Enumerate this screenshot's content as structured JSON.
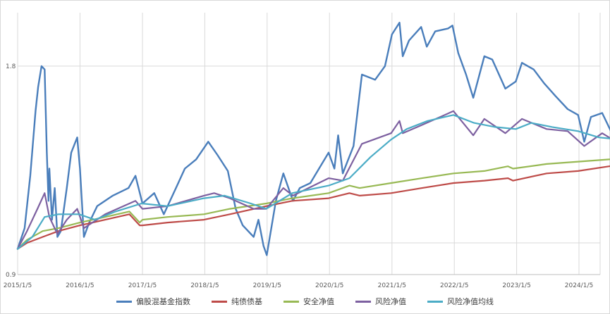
{
  "chart_data": {
    "type": "line",
    "title": "",
    "xlabel": "",
    "ylabel": "",
    "x_ticks": [
      "2015/1/5",
      "2016/1/5",
      "2017/1/5",
      "2018/1/5",
      "2019/1/5",
      "2020/1/5",
      "2021/1/5",
      "2022/1/5",
      "2023/1/5",
      "2024/1/5"
    ],
    "y_scale": "log",
    "y_ticks": [
      "0.9",
      "1.8"
    ],
    "ylim": [
      0.9,
      2.15
    ],
    "xlim": [
      "2015-01-05",
      "2024-11-30"
    ],
    "grid": {
      "vertical": true,
      "horizontal": true
    },
    "legend_position": "bottom",
    "series": [
      {
        "name": "偏股混基金指数",
        "color": "#4a7ebb",
        "points": [
          [
            "2015-01-05",
            0.98
          ],
          [
            "2015-02-15",
            1.05
          ],
          [
            "2015-03-20",
            1.25
          ],
          [
            "2015-04-20",
            1.55
          ],
          [
            "2015-05-05",
            1.68
          ],
          [
            "2015-05-25",
            1.8
          ],
          [
            "2015-06-12",
            1.78
          ],
          [
            "2015-06-25",
            1.35
          ],
          [
            "2015-07-05",
            1.15
          ],
          [
            "2015-07-10",
            1.28
          ],
          [
            "2015-07-25",
            1.08
          ],
          [
            "2015-08-10",
            1.2
          ],
          [
            "2015-08-26",
            1.02
          ],
          [
            "2015-09-15",
            1.04
          ],
          [
            "2015-10-20",
            1.2
          ],
          [
            "2015-11-15",
            1.35
          ],
          [
            "2015-12-20",
            1.42
          ],
          [
            "2016-01-05",
            1.28
          ],
          [
            "2016-01-28",
            1.02
          ],
          [
            "2016-02-28",
            1.07
          ],
          [
            "2016-04-15",
            1.13
          ],
          [
            "2016-07-15",
            1.17
          ],
          [
            "2016-10-15",
            1.2
          ],
          [
            "2016-11-25",
            1.25
          ],
          [
            "2017-01-05",
            1.14
          ],
          [
            "2017-03-15",
            1.18
          ],
          [
            "2017-05-10",
            1.1
          ],
          [
            "2017-07-20",
            1.2
          ],
          [
            "2017-09-10",
            1.28
          ],
          [
            "2017-11-15",
            1.32
          ],
          [
            "2018-01-25",
            1.4
          ],
          [
            "2018-03-20",
            1.34
          ],
          [
            "2018-05-20",
            1.27
          ],
          [
            "2018-07-05",
            1.12
          ],
          [
            "2018-08-15",
            1.06
          ],
          [
            "2018-10-18",
            1.02
          ],
          [
            "2018-11-15",
            1.08
          ],
          [
            "2018-12-15",
            0.99
          ],
          [
            "2019-01-03",
            0.96
          ],
          [
            "2019-02-25",
            1.15
          ],
          [
            "2019-04-10",
            1.26
          ],
          [
            "2019-06-05",
            1.15
          ],
          [
            "2019-07-15",
            1.2
          ],
          [
            "2019-09-15",
            1.22
          ],
          [
            "2019-12-31",
            1.35
          ],
          [
            "2020-02-03",
            1.28
          ],
          [
            "2020-02-25",
            1.43
          ],
          [
            "2020-03-23",
            1.26
          ],
          [
            "2020-05-25",
            1.38
          ],
          [
            "2020-07-13",
            1.75
          ],
          [
            "2020-09-28",
            1.72
          ],
          [
            "2020-11-25",
            1.8
          ],
          [
            "2021-01-05",
            2.0
          ],
          [
            "2021-02-18",
            2.08
          ],
          [
            "2021-03-09",
            1.86
          ],
          [
            "2021-04-15",
            1.96
          ],
          [
            "2021-06-25",
            2.05
          ],
          [
            "2021-07-28",
            1.92
          ],
          [
            "2021-09-15",
            2.02
          ],
          [
            "2021-11-30",
            2.04
          ],
          [
            "2021-12-25",
            2.06
          ],
          [
            "2022-01-28",
            1.88
          ],
          [
            "2022-03-15",
            1.75
          ],
          [
            "2022-04-26",
            1.62
          ],
          [
            "2022-06-30",
            1.86
          ],
          [
            "2022-08-15",
            1.84
          ],
          [
            "2022-10-31",
            1.67
          ],
          [
            "2022-12-31",
            1.71
          ],
          [
            "2023-02-05",
            1.82
          ],
          [
            "2023-04-15",
            1.78
          ],
          [
            "2023-06-15",
            1.7
          ],
          [
            "2023-08-20",
            1.63
          ],
          [
            "2023-10-31",
            1.56
          ],
          [
            "2023-12-31",
            1.53
          ],
          [
            "2024-02-05",
            1.4
          ],
          [
            "2024-03-15",
            1.52
          ],
          [
            "2024-05-20",
            1.54
          ],
          [
            "2024-07-10",
            1.45
          ],
          [
            "2024-08-31",
            1.4
          ],
          [
            "2024-09-20",
            1.36
          ],
          [
            "2024-10-08",
            1.6
          ],
          [
            "2024-11-30",
            1.53
          ]
        ]
      },
      {
        "name": "纯债债基",
        "color": "#be4b48",
        "points": [
          [
            "2015-01-05",
            0.98
          ],
          [
            "2015-03-01",
            1.0
          ],
          [
            "2015-06-01",
            1.02
          ],
          [
            "2015-09-01",
            1.04
          ],
          [
            "2016-01-05",
            1.06
          ],
          [
            "2016-06-01",
            1.08
          ],
          [
            "2016-10-20",
            1.1
          ],
          [
            "2016-12-20",
            1.06
          ],
          [
            "2017-01-05",
            1.06
          ],
          [
            "2017-06-01",
            1.07
          ],
          [
            "2017-12-31",
            1.08
          ],
          [
            "2018-06-01",
            1.1
          ],
          [
            "2018-12-31",
            1.13
          ],
          [
            "2019-06-01",
            1.15
          ],
          [
            "2019-12-31",
            1.16
          ],
          [
            "2020-05-01",
            1.18
          ],
          [
            "2020-06-30",
            1.17
          ],
          [
            "2020-12-31",
            1.18
          ],
          [
            "2021-06-30",
            1.2
          ],
          [
            "2021-12-31",
            1.22
          ],
          [
            "2022-06-30",
            1.23
          ],
          [
            "2022-11-15",
            1.24
          ],
          [
            "2022-12-15",
            1.23
          ],
          [
            "2023-06-30",
            1.26
          ],
          [
            "2023-12-31",
            1.27
          ],
          [
            "2024-06-30",
            1.29
          ],
          [
            "2024-11-30",
            1.31
          ]
        ]
      },
      {
        "name": "安全净值",
        "color": "#98b954",
        "points": [
          [
            "2015-01-05",
            0.98
          ],
          [
            "2015-03-01",
            1.01
          ],
          [
            "2015-06-01",
            1.04
          ],
          [
            "2015-09-01",
            1.05
          ],
          [
            "2016-01-05",
            1.07
          ],
          [
            "2016-06-01",
            1.09
          ],
          [
            "2016-10-20",
            1.11
          ],
          [
            "2016-12-20",
            1.07
          ],
          [
            "2017-01-05",
            1.08
          ],
          [
            "2017-06-01",
            1.09
          ],
          [
            "2017-12-31",
            1.1
          ],
          [
            "2018-06-01",
            1.12
          ],
          [
            "2018-12-31",
            1.14
          ],
          [
            "2019-06-01",
            1.16
          ],
          [
            "2019-12-31",
            1.18
          ],
          [
            "2020-05-01",
            1.21
          ],
          [
            "2020-06-30",
            1.2
          ],
          [
            "2020-12-31",
            1.22
          ],
          [
            "2021-06-30",
            1.24
          ],
          [
            "2021-12-31",
            1.26
          ],
          [
            "2022-06-30",
            1.27
          ],
          [
            "2022-11-15",
            1.29
          ],
          [
            "2022-12-15",
            1.28
          ],
          [
            "2023-06-30",
            1.3
          ],
          [
            "2023-12-31",
            1.31
          ],
          [
            "2024-06-30",
            1.32
          ],
          [
            "2024-11-30",
            1.33
          ]
        ]
      },
      {
        "name": "风险净值",
        "color": "#7d60a0",
        "points": [
          [
            "2015-01-05",
            0.98
          ],
          [
            "2015-03-01",
            1.04
          ],
          [
            "2015-05-01",
            1.12
          ],
          [
            "2015-06-12",
            1.18
          ],
          [
            "2015-07-10",
            1.09
          ],
          [
            "2015-08-26",
            1.03
          ],
          [
            "2015-10-20",
            1.08
          ],
          [
            "2015-12-20",
            1.12
          ],
          [
            "2016-01-28",
            1.05
          ],
          [
            "2016-06-01",
            1.1
          ],
          [
            "2016-11-25",
            1.15
          ],
          [
            "2017-01-05",
            1.12
          ],
          [
            "2017-06-01",
            1.13
          ],
          [
            "2017-12-31",
            1.17
          ],
          [
            "2018-03-01",
            1.18
          ],
          [
            "2018-06-01",
            1.16
          ],
          [
            "2018-10-18",
            1.12
          ],
          [
            "2018-12-31",
            1.12
          ],
          [
            "2019-04-10",
            1.2
          ],
          [
            "2019-06-05",
            1.17
          ],
          [
            "2019-12-31",
            1.24
          ],
          [
            "2020-03-23",
            1.23
          ],
          [
            "2020-07-13",
            1.39
          ],
          [
            "2020-12-31",
            1.44
          ],
          [
            "2021-02-18",
            1.5
          ],
          [
            "2021-03-09",
            1.44
          ],
          [
            "2021-06-30",
            1.48
          ],
          [
            "2021-12-31",
            1.55
          ],
          [
            "2022-04-26",
            1.43
          ],
          [
            "2022-06-30",
            1.51
          ],
          [
            "2022-10-31",
            1.44
          ],
          [
            "2023-02-05",
            1.51
          ],
          [
            "2023-06-30",
            1.46
          ],
          [
            "2023-10-31",
            1.45
          ],
          [
            "2024-02-05",
            1.38
          ],
          [
            "2024-05-20",
            1.44
          ],
          [
            "2024-09-20",
            1.38
          ],
          [
            "2024-10-08",
            1.46
          ],
          [
            "2024-11-30",
            1.44
          ]
        ]
      },
      {
        "name": "风险净值均线",
        "color": "#4bacc6",
        "points": [
          [
            "2015-01-05",
            0.98
          ],
          [
            "2015-04-01",
            1.02
          ],
          [
            "2015-06-12",
            1.09
          ],
          [
            "2015-09-01",
            1.1
          ],
          [
            "2015-12-31",
            1.1
          ],
          [
            "2016-04-01",
            1.08
          ],
          [
            "2016-08-01",
            1.11
          ],
          [
            "2016-12-31",
            1.14
          ],
          [
            "2017-06-01",
            1.13
          ],
          [
            "2017-12-31",
            1.16
          ],
          [
            "2018-05-01",
            1.17
          ],
          [
            "2018-10-01",
            1.14
          ],
          [
            "2018-12-31",
            1.12
          ],
          [
            "2019-06-01",
            1.18
          ],
          [
            "2019-12-31",
            1.21
          ],
          [
            "2020-05-01",
            1.24
          ],
          [
            "2020-09-01",
            1.33
          ],
          [
            "2020-12-31",
            1.41
          ],
          [
            "2021-04-01",
            1.46
          ],
          [
            "2021-08-01",
            1.5
          ],
          [
            "2021-12-31",
            1.53
          ],
          [
            "2022-05-01",
            1.49
          ],
          [
            "2022-09-01",
            1.47
          ],
          [
            "2022-12-31",
            1.46
          ],
          [
            "2023-04-01",
            1.49
          ],
          [
            "2023-08-01",
            1.47
          ],
          [
            "2023-12-31",
            1.45
          ],
          [
            "2024-05-01",
            1.42
          ],
          [
            "2024-09-01",
            1.41
          ],
          [
            "2024-11-30",
            1.43
          ]
        ]
      }
    ]
  }
}
